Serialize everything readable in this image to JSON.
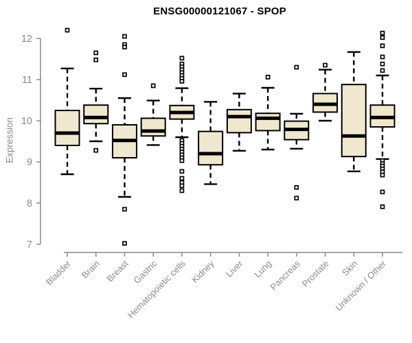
{
  "page": {
    "background": "#ffffff"
  },
  "chart_data": {
    "type": "box",
    "title": "ENSG00000121067 - SPOP",
    "ylabel": "Expression",
    "xlabel": "",
    "ylim": [
      6.9,
      12.4
    ],
    "yticks": [
      12,
      11,
      10,
      9,
      8,
      7
    ],
    "grid": false,
    "legend": null,
    "colors": {
      "box_fill": "#EFE8CE",
      "box_stroke": "#000000",
      "median": "#000000",
      "whisker": "#000000",
      "outlier_stroke": "#000000",
      "outlier_fill": "#ffffff",
      "axis": "#8a8a8a",
      "tick_text": "#8a8a8a",
      "title_text": "#000000"
    },
    "categories": [
      "Bladder",
      "Brain",
      "Breast",
      "Gastric",
      "Hematopoietic cells",
      "Kidney",
      "Liver",
      "Lung",
      "Pancreas",
      "Prostate",
      "Skin",
      "Unknown / Other"
    ],
    "boxes": [
      {
        "category": "Bladder",
        "whisker_low": 8.7,
        "q1": 9.4,
        "median": 9.7,
        "q3": 10.25,
        "whisker_high": 11.27,
        "outliers": [
          12.2
        ]
      },
      {
        "category": "Brain",
        "whisker_low": 9.5,
        "q1": 9.93,
        "median": 10.08,
        "q3": 10.38,
        "whisker_high": 10.78,
        "outliers": [
          11.65,
          11.48,
          9.28
        ]
      },
      {
        "category": "Breast",
        "whisker_low": 8.15,
        "q1": 9.1,
        "median": 9.52,
        "q3": 9.9,
        "whisker_high": 10.55,
        "outliers": [
          12.05,
          11.85,
          11.79,
          11.12,
          7.85,
          7.02
        ]
      },
      {
        "category": "Gastric",
        "whisker_low": 9.41,
        "q1": 9.63,
        "median": 9.75,
        "q3": 10.06,
        "whisker_high": 10.49,
        "outliers": [
          10.85
        ]
      },
      {
        "category": "Hematopoietic cells",
        "whisker_low": 9.6,
        "q1": 10.04,
        "median": 10.2,
        "q3": 10.37,
        "whisker_high": 10.79,
        "outliers": [
          11.52,
          11.38,
          11.31,
          11.24,
          11.17,
          11.1,
          11.03,
          10.96,
          9.52,
          9.45,
          9.38,
          9.31,
          9.24,
          9.17,
          9.1,
          9.03,
          8.77,
          8.6,
          8.5,
          8.42,
          8.3
        ]
      },
      {
        "category": "Kidney",
        "whisker_low": 8.46,
        "q1": 8.93,
        "median": 9.2,
        "q3": 9.74,
        "whisker_high": 10.46,
        "outliers": []
      },
      {
        "category": "Liver",
        "whisker_low": 9.27,
        "q1": 9.71,
        "median": 10.1,
        "q3": 10.27,
        "whisker_high": 10.66,
        "outliers": []
      },
      {
        "category": "Lung",
        "whisker_low": 9.3,
        "q1": 9.76,
        "median": 10.06,
        "q3": 10.18,
        "whisker_high": 10.8,
        "outliers": [
          11.06
        ]
      },
      {
        "category": "Pancreas",
        "whisker_low": 9.32,
        "q1": 9.54,
        "median": 9.79,
        "q3": 9.99,
        "whisker_high": 10.17,
        "outliers": [
          11.3,
          8.38,
          8.12
        ]
      },
      {
        "category": "Prostate",
        "whisker_low": 10.0,
        "q1": 10.21,
        "median": 10.4,
        "q3": 10.66,
        "whisker_high": 11.24,
        "outliers": [
          11.35
        ]
      },
      {
        "category": "Skin",
        "whisker_low": 8.77,
        "q1": 9.13,
        "median": 9.63,
        "q3": 10.88,
        "whisker_high": 11.67,
        "outliers": []
      },
      {
        "category": "Unknown / Other",
        "whisker_low": 9.07,
        "q1": 9.85,
        "median": 10.08,
        "q3": 10.38,
        "whisker_high": 11.1,
        "outliers": [
          12.13,
          12.02,
          11.82,
          11.55,
          11.38,
          11.22,
          9.03,
          8.96,
          8.9,
          8.83,
          8.76,
          8.68,
          8.27,
          7.91
        ]
      }
    ]
  }
}
